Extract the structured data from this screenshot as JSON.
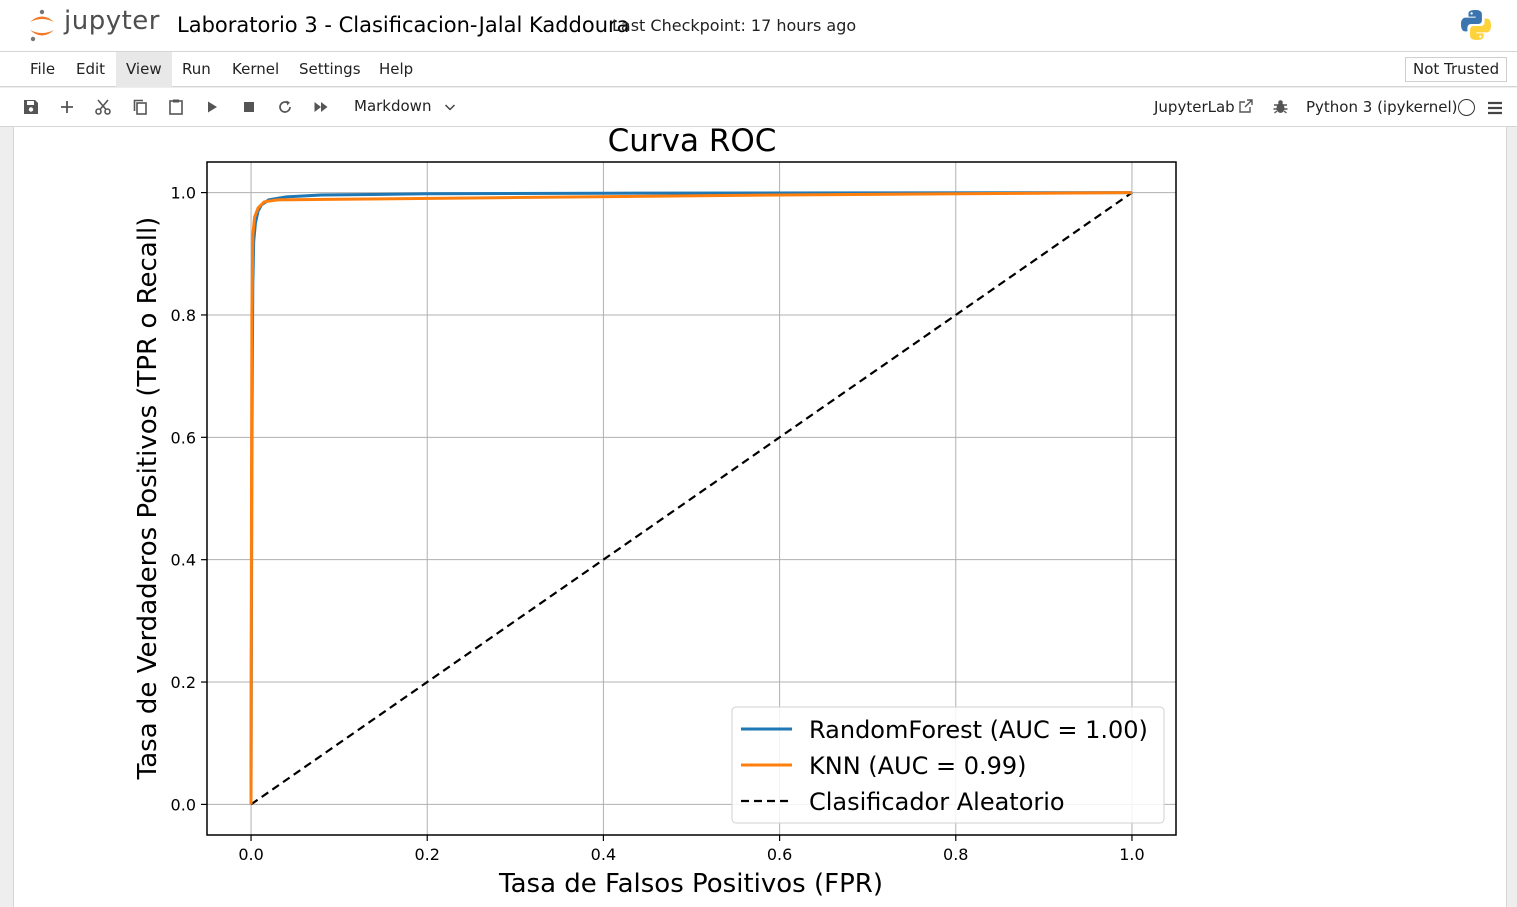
{
  "header": {
    "logo_text": "jupyter",
    "notebook_title": "Laboratorio 3 - Clasificacion-Jalal Kaddoura",
    "checkpoint": "Last Checkpoint: 17 hours ago"
  },
  "menubar": {
    "items": [
      "File",
      "Edit",
      "View",
      "Run",
      "Kernel",
      "Settings",
      "Help"
    ],
    "active": "View",
    "trust_status": "Not Trusted"
  },
  "toolbar": {
    "buttons": [
      "save-icon",
      "add-cell-icon",
      "cut-icon",
      "copy-icon",
      "paste-icon",
      "run-icon",
      "stop-icon",
      "restart-icon",
      "fast-forward-icon"
    ],
    "cell_type": "Markdown",
    "jupyterlab_label": "JupyterLab",
    "kernel_name": "Python 3 (ipykernel)"
  },
  "chart_data": {
    "type": "line",
    "title": "Curva ROC",
    "xlabel": "Tasa de Falsos Positivos (FPR)",
    "ylabel": "Tasa de Verdaderos Positivos (TPR o Recall)",
    "xlim": [
      -0.05,
      1.05
    ],
    "ylim": [
      -0.05,
      1.05
    ],
    "xticks": [
      0.0,
      0.2,
      0.4,
      0.6,
      0.8,
      1.0
    ],
    "yticks": [
      0.0,
      0.2,
      0.4,
      0.6,
      0.8,
      1.0
    ],
    "tick_labels": [
      "0.0",
      "0.2",
      "0.4",
      "0.6",
      "0.8",
      "1.0"
    ],
    "grid": true,
    "legend_position": "lower-right",
    "series": [
      {
        "name": "RandomForest (AUC = 1.00)",
        "color": "#1f77b4",
        "style": "solid",
        "x": [
          0.0,
          0.001,
          0.002,
          0.003,
          0.005,
          0.008,
          0.012,
          0.02,
          0.04,
          0.08,
          0.2,
          0.4,
          0.7,
          1.0
        ],
        "y": [
          0.0,
          0.6,
          0.85,
          0.92,
          0.95,
          0.97,
          0.98,
          0.988,
          0.993,
          0.996,
          0.998,
          0.999,
          0.9995,
          1.0
        ]
      },
      {
        "name": "KNN (AUC = 0.99)",
        "color": "#ff7f0e",
        "style": "solid",
        "x": [
          0.0,
          0.0005,
          0.001,
          0.002,
          0.004,
          0.008,
          0.015,
          0.03,
          0.1,
          0.3,
          0.6,
          1.0
        ],
        "y": [
          0.0,
          0.5,
          0.8,
          0.93,
          0.96,
          0.975,
          0.985,
          0.988,
          0.989,
          0.992,
          0.996,
          1.0
        ]
      },
      {
        "name": "Clasificador Aleatorio",
        "color": "#000000",
        "style": "dashed",
        "x": [
          0.0,
          1.0
        ],
        "y": [
          0.0,
          1.0
        ]
      }
    ]
  }
}
